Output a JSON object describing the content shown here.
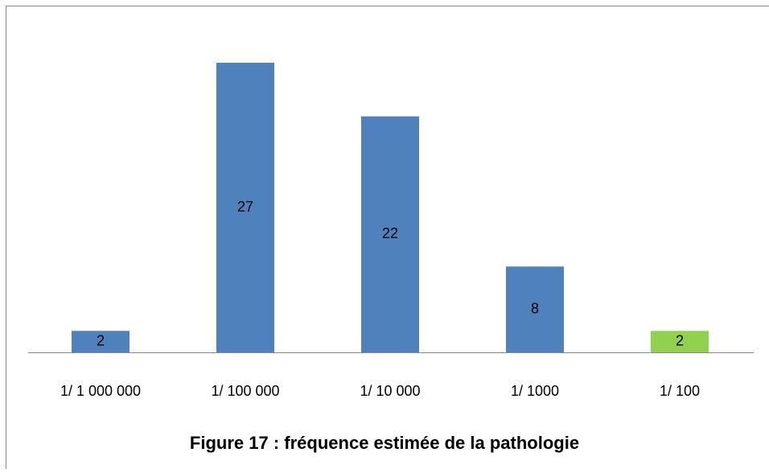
{
  "chart_data": {
    "type": "bar",
    "title": "Figure 17 : fréquence estimée de la pathologie",
    "categories": [
      "1/ 1 000 000",
      "1/ 100 000",
      "1/ 10 000",
      "1/ 1000",
      "1/ 100"
    ],
    "values": [
      2,
      27,
      22,
      8,
      2
    ],
    "colors": [
      "#4f81bd",
      "#4f81bd",
      "#4f81bd",
      "#4f81bd",
      "#92d050"
    ],
    "ylim": [
      0,
      30
    ]
  }
}
